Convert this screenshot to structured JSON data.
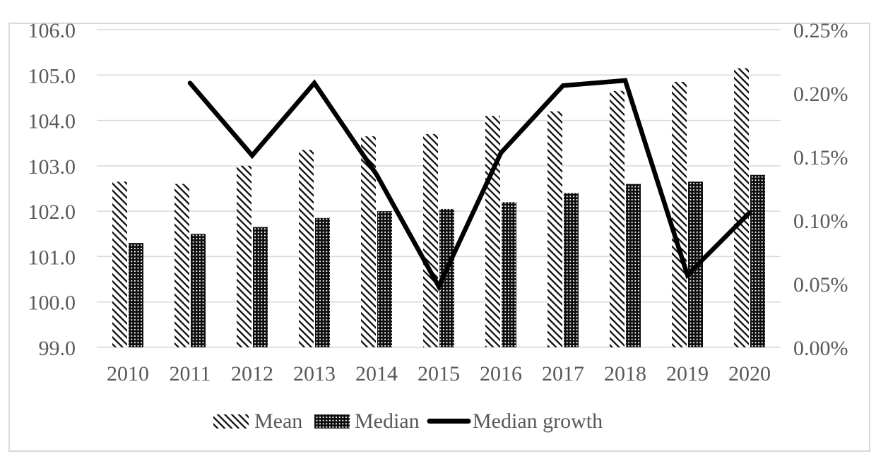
{
  "chart_data": {
    "type": "combo (bar + line)",
    "title": "",
    "categories": [
      "2010",
      "2011",
      "2012",
      "2013",
      "2014",
      "2015",
      "2016",
      "2017",
      "2018",
      "2019",
      "2020"
    ],
    "series": [
      {
        "name": "Mean",
        "type": "bar",
        "axis": "left",
        "pattern": "diagonal-hatch",
        "color": "#1a1a1a",
        "values": [
          102.65,
          102.6,
          103.0,
          103.35,
          103.65,
          103.7,
          104.1,
          104.2,
          104.65,
          104.85,
          105.15
        ]
      },
      {
        "name": "Median",
        "type": "bar",
        "axis": "left",
        "pattern": "dot-grid",
        "color": "#1a1a1a",
        "values": [
          101.3,
          101.5,
          101.65,
          101.85,
          102.0,
          102.05,
          102.2,
          102.4,
          102.6,
          102.65,
          102.8
        ]
      },
      {
        "name": "Median growth",
        "type": "line",
        "axis": "right",
        "pattern": "thick-line",
        "color": "#000000",
        "values": [
          null,
          0.208,
          0.151,
          0.208,
          0.136,
          0.048,
          0.153,
          0.206,
          0.21,
          0.057,
          0.106
        ]
      }
    ],
    "left_axis": {
      "min": 99.0,
      "max": 106.0,
      "step": 1.0,
      "tick_labels": [
        "106.0",
        "105.0",
        "104.0",
        "103.0",
        "102.0",
        "101.0",
        "100.0",
        "99.0"
      ]
    },
    "right_axis": {
      "min": 0.0,
      "max": 0.25,
      "step": 0.05,
      "format": "percent",
      "tick_labels": [
        "0.25%",
        "0.20%",
        "0.15%",
        "0.10%",
        "0.05%",
        "0.00%"
      ]
    },
    "x_axis": {
      "tick_labels": [
        "2010",
        "2011",
        "2012",
        "2013",
        "2014",
        "2015",
        "2016",
        "2017",
        "2018",
        "2019",
        "2020"
      ]
    },
    "legend": {
      "position": "bottom",
      "items": [
        {
          "label": "Mean",
          "swatch": "diagonal-hatch"
        },
        {
          "label": "Median",
          "swatch": "dot-grid"
        },
        {
          "label": "Median growth",
          "swatch": "thick-line"
        }
      ]
    },
    "grid": "horizontal",
    "colors": {
      "axis_text": "#595959",
      "gridline": "#d9d9d9",
      "border": "#d9d9d9",
      "series_ink": "#0d0d0d",
      "background": "#ffffff"
    }
  }
}
